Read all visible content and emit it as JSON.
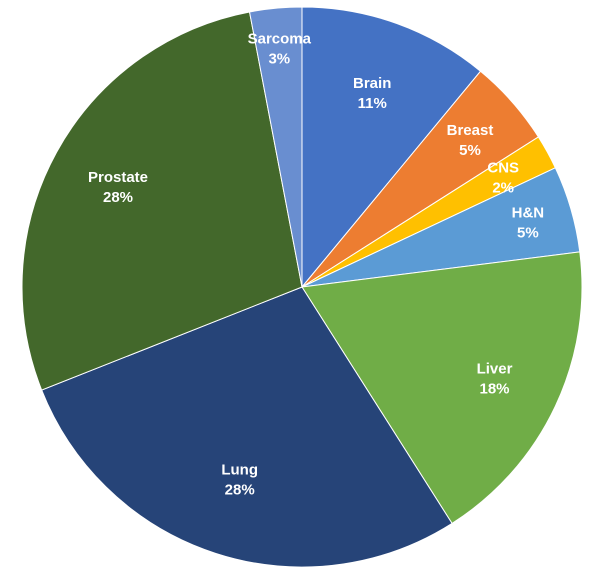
{
  "chart_data": {
    "type": "pie",
    "title": "",
    "start_angle_deg": -90,
    "direction": "clockwise",
    "slices": [
      {
        "label": "Brain",
        "percent_label": "11%",
        "value": 11,
        "color": "#4472C4"
      },
      {
        "label": "Breast",
        "percent_label": "5%",
        "value": 5,
        "color": "#ED7D31"
      },
      {
        "label": "CNS",
        "percent_label": "2%",
        "value": 2,
        "color": "#FFC000"
      },
      {
        "label": "H&N",
        "percent_label": "5%",
        "value": 5,
        "color": "#5B9BD5"
      },
      {
        "label": "Liver",
        "percent_label": "18%",
        "value": 18,
        "color": "#70AD47"
      },
      {
        "label": "Lung",
        "percent_label": "28%",
        "value": 28,
        "color": "#264478"
      },
      {
        "label": "Prostate",
        "percent_label": "28%",
        "value": 28,
        "color": "#43682B"
      },
      {
        "label": "Sarcoma",
        "percent_label": "3%",
        "value": 3,
        "color": "#698ED0"
      }
    ],
    "legend": "none",
    "data_labels": "inside"
  }
}
